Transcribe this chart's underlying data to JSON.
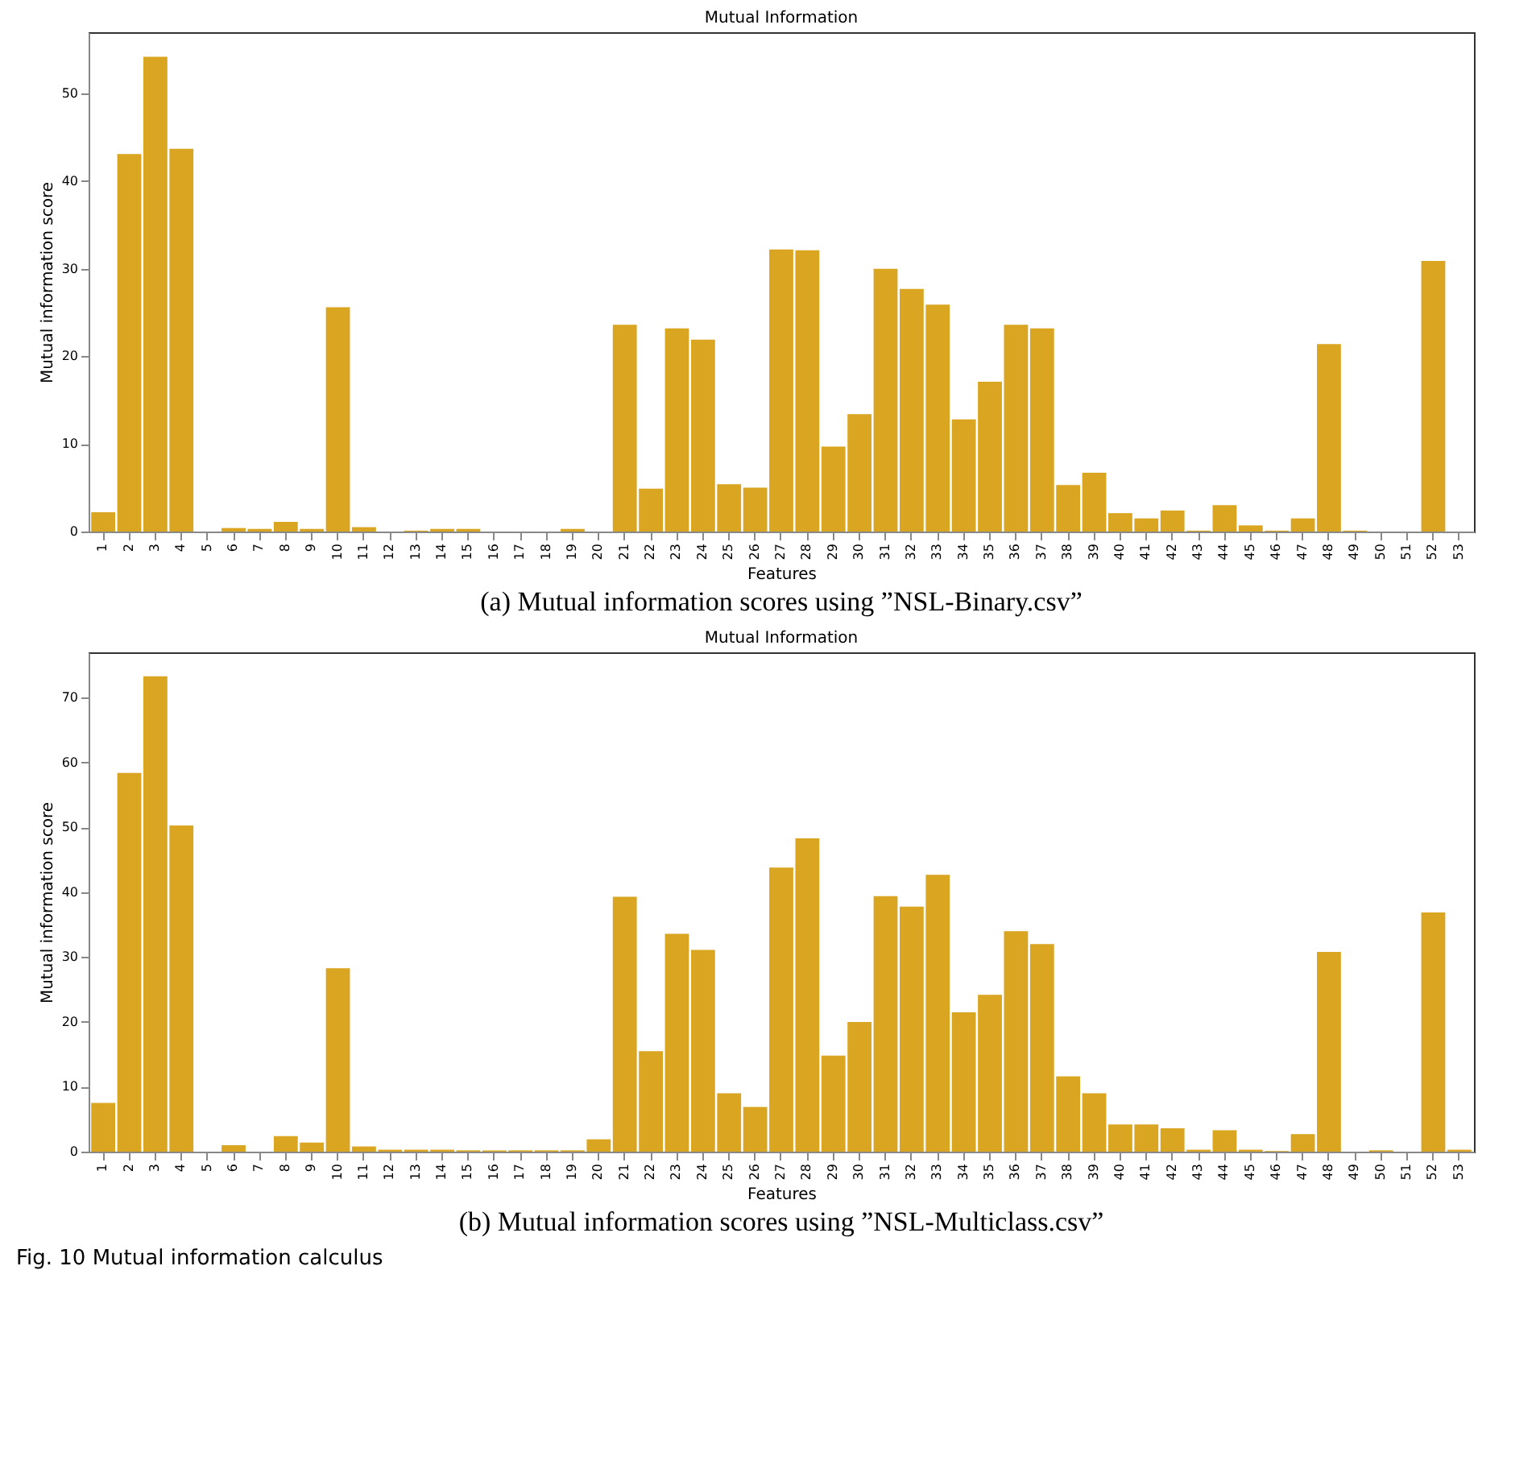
{
  "chart_data": [
    {
      "type": "bar",
      "title": "Mutual Information",
      "xlabel": "Features",
      "ylabel": "Mutual information score",
      "color": "#daa520",
      "grid": false,
      "legend": false,
      "categories": [
        "1",
        "2",
        "3",
        "4",
        "5",
        "6",
        "7",
        "8",
        "9",
        "10",
        "11",
        "12",
        "13",
        "14",
        "15",
        "16",
        "17",
        "18",
        "19",
        "20",
        "21",
        "22",
        "23",
        "24",
        "25",
        "26",
        "27",
        "28",
        "29",
        "30",
        "31",
        "32",
        "33",
        "34",
        "35",
        "36",
        "37",
        "38",
        "39",
        "40",
        "41",
        "42",
        "43",
        "44",
        "45",
        "46",
        "47",
        "48",
        "49",
        "50",
        "51",
        "52",
        "53"
      ],
      "values": [
        2.2,
        43.1,
        54.2,
        43.7,
        0,
        0.4,
        0.3,
        1.1,
        0.3,
        25.6,
        0.5,
        0,
        0.1,
        0.3,
        0.3,
        0,
        0,
        0,
        0.3,
        0,
        23.6,
        4.9,
        23.2,
        21.9,
        5.4,
        5.0,
        32.2,
        32.1,
        9.7,
        13.4,
        30.0,
        27.7,
        25.9,
        12.8,
        17.1,
        23.6,
        23.2,
        5.3,
        6.7,
        2.1,
        1.5,
        2.4,
        0.1,
        3.0,
        0.7,
        0.1,
        1.5,
        21.4,
        0.1,
        0,
        0,
        30.9,
        0
      ],
      "ylim": [
        0,
        57
      ],
      "yticks": [
        0,
        10,
        20,
        30,
        40,
        50
      ],
      "annotations": [
        "(a) Mutual information scores using ”NSL-Binary.csv”"
      ]
    },
    {
      "type": "bar",
      "title": "Mutual Information",
      "xlabel": "Features",
      "ylabel": "Mutual information score",
      "color": "#daa520",
      "grid": false,
      "legend": false,
      "categories": [
        "1",
        "2",
        "3",
        "4",
        "5",
        "6",
        "7",
        "8",
        "9",
        "10",
        "11",
        "12",
        "13",
        "14",
        "15",
        "16",
        "17",
        "18",
        "19",
        "20",
        "21",
        "22",
        "23",
        "24",
        "25",
        "26",
        "27",
        "28",
        "29",
        "30",
        "31",
        "32",
        "33",
        "34",
        "35",
        "36",
        "37",
        "38",
        "39",
        "40",
        "41",
        "42",
        "43",
        "44",
        "45",
        "46",
        "47",
        "48",
        "49",
        "50",
        "51",
        "52",
        "53"
      ],
      "values": [
        7.5,
        58.4,
        73.3,
        50.3,
        0,
        1.0,
        0,
        2.4,
        1.4,
        28.3,
        0.8,
        0.3,
        0.3,
        0.3,
        0.2,
        0.2,
        0.2,
        0.2,
        0.2,
        1.9,
        39.3,
        15.5,
        33.6,
        31.1,
        9.0,
        6.9,
        43.8,
        48.3,
        14.8,
        20.0,
        39.4,
        37.8,
        42.7,
        21.5,
        24.2,
        34.0,
        32.0,
        11.6,
        9.0,
        4.2,
        4.2,
        3.6,
        0.3,
        3.3,
        0.3,
        0.1,
        2.7,
        30.8,
        0,
        0.2,
        0,
        36.9,
        0.3
      ],
      "ylim": [
        0,
        77
      ],
      "yticks": [
        0,
        10,
        20,
        30,
        40,
        50,
        60,
        70
      ],
      "annotations": [
        "(b) Mutual information scores using ”NSL-Multiclass.csv”",
        "Fig. 10 Mutual information calculus"
      ]
    }
  ]
}
